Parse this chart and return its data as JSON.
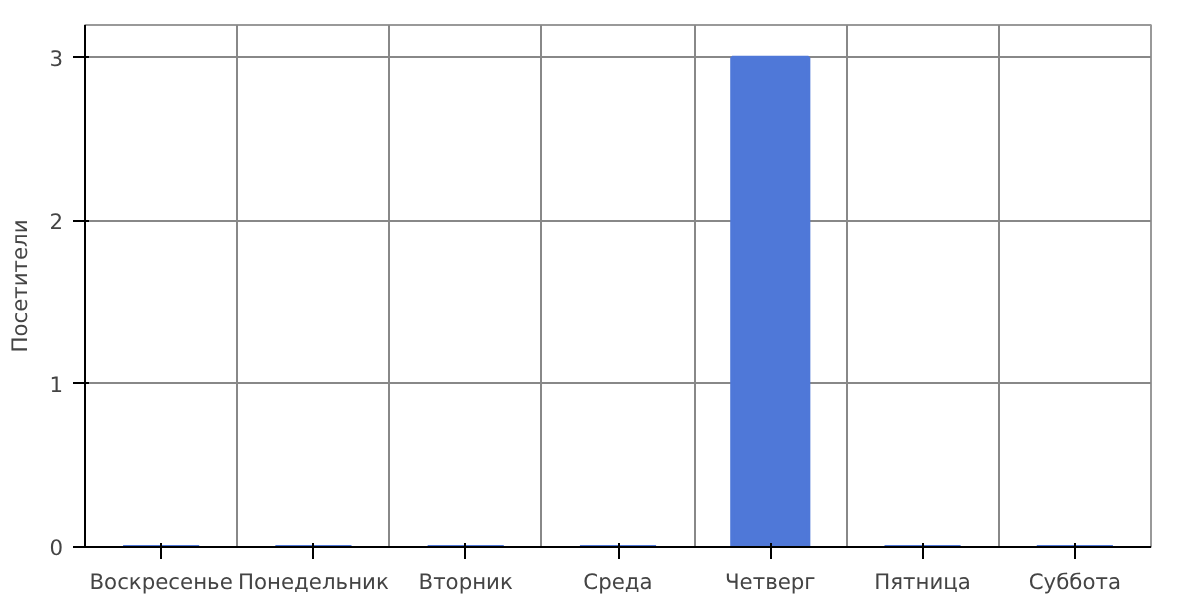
{
  "chart_data": {
    "type": "bar",
    "ylabel": "Посетители",
    "categories": [
      "Воскресенье",
      "Понедельник",
      "Вторник",
      "Среда",
      "Четверг",
      "Пятница",
      "Суббота"
    ],
    "values": [
      0,
      0,
      0,
      0,
      3,
      0,
      0
    ],
    "color": "#4f78d8",
    "ylim": [
      0,
      3.2
    ],
    "yticks": [
      0,
      1,
      2,
      3
    ],
    "grid": true
  }
}
